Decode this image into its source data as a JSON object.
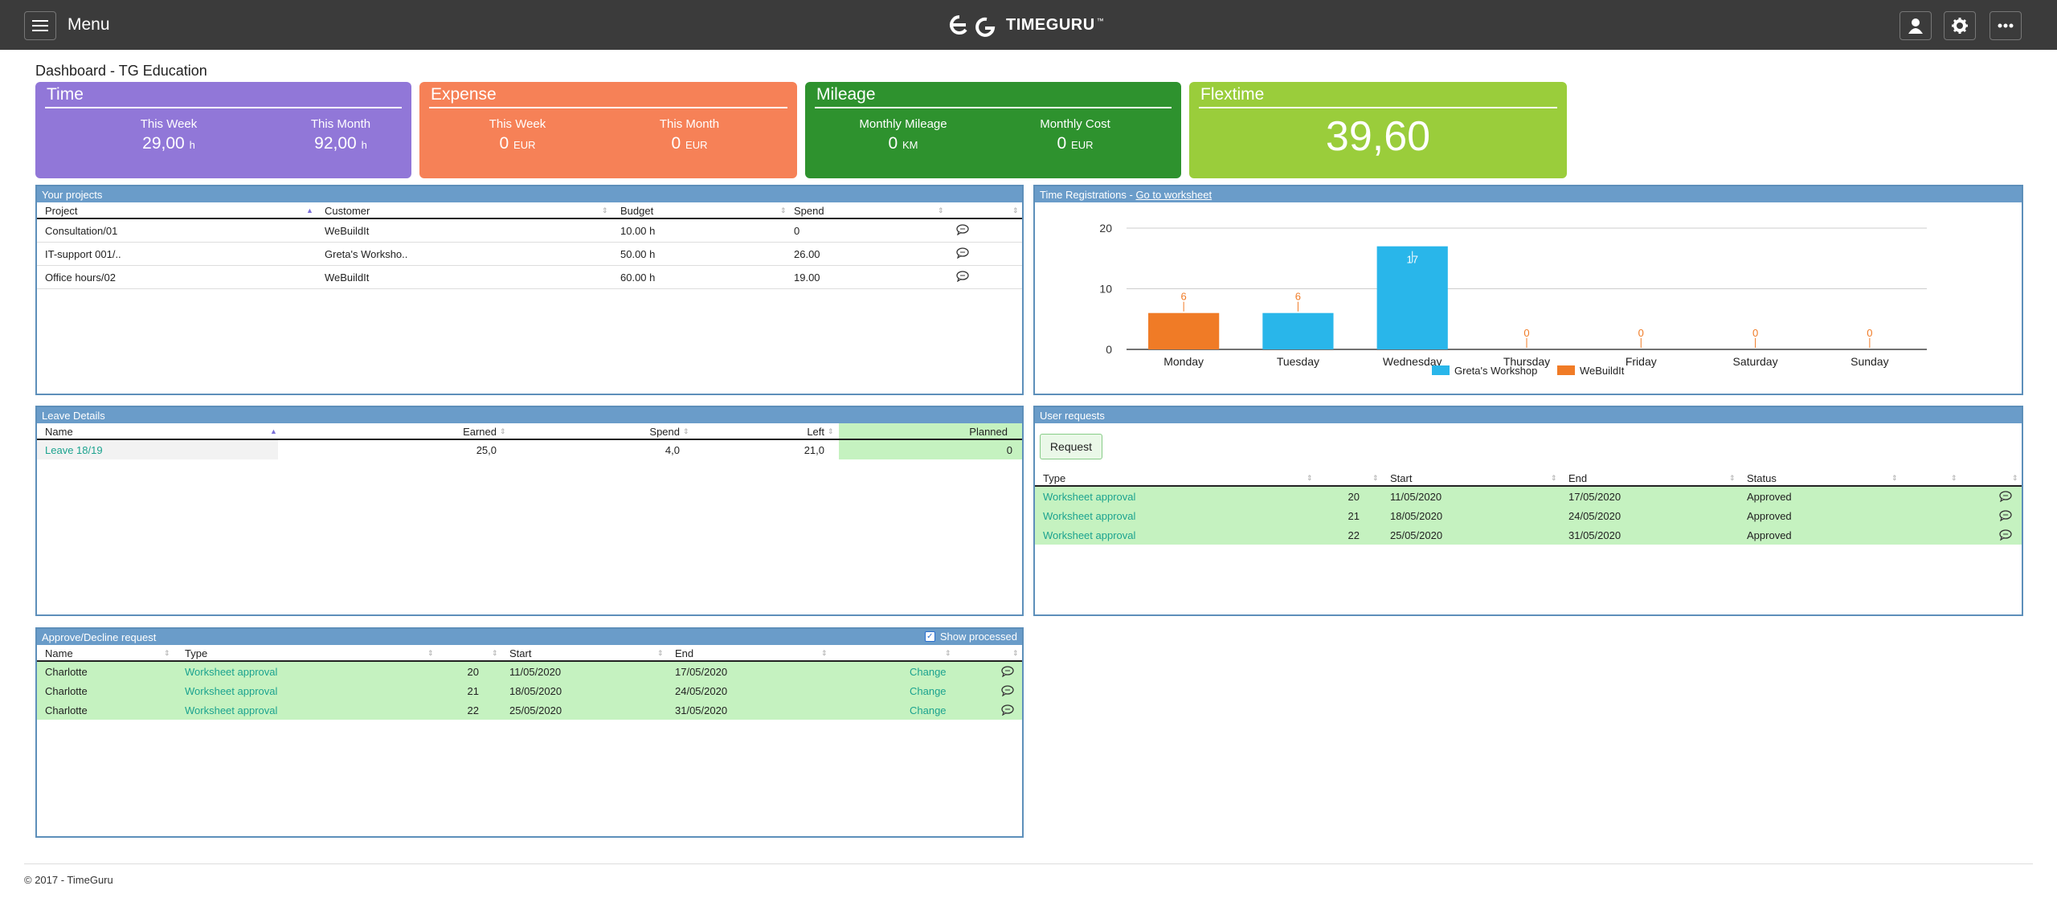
{
  "header": {
    "menu_label": "Menu",
    "logo_text": "TIMEGURU",
    "logo_tm": "™"
  },
  "page_title": "Dashboard - TG Education",
  "cards": {
    "time": {
      "title": "Time",
      "week_label": "This Week",
      "week_value": "29,00",
      "week_unit": "h",
      "month_label": "This Month",
      "month_value": "92,00",
      "month_unit": "h"
    },
    "expense": {
      "title": "Expense",
      "week_label": "This Week",
      "week_value": "0",
      "week_unit": "EUR",
      "month_label": "This Month",
      "month_value": "0",
      "month_unit": "EUR"
    },
    "mileage": {
      "title": "Mileage",
      "a_label": "Monthly Mileage",
      "a_value": "0",
      "a_unit": "KM",
      "b_label": "Monthly Cost",
      "b_value": "0",
      "b_unit": "EUR"
    },
    "flextime": {
      "title": "Flextime",
      "value": "39,60"
    }
  },
  "projects": {
    "title": "Your projects",
    "columns": [
      "Project",
      "Customer",
      "Budget",
      "Spend"
    ],
    "rows": [
      {
        "project": "Consultation/01",
        "customer": "WeBuildIt",
        "budget": "10.00 h",
        "spend": "0"
      },
      {
        "project": "IT-support 001/..",
        "customer": "Greta's Worksho..",
        "budget": "50.00 h",
        "spend": "26.00"
      },
      {
        "project": "Office hours/02",
        "customer": "WeBuildIt",
        "budget": "60.00 h",
        "spend": "19.00"
      }
    ]
  },
  "time_reg": {
    "title": "Time Registrations - ",
    "link": "Go to worksheet"
  },
  "chart_data": {
    "type": "bar",
    "categories": [
      "Monday",
      "Tuesday",
      "Wednesday",
      "Thursday",
      "Friday",
      "Saturday",
      "Sunday"
    ],
    "series": [
      {
        "name": "Greta's Workshop",
        "color": "#29b6ea",
        "values": [
          0,
          6,
          17,
          0,
          0,
          0,
          0
        ]
      },
      {
        "name": "WeBuildIt",
        "color": "#f07b26",
        "values": [
          6,
          0,
          0,
          0,
          0,
          0,
          0
        ]
      }
    ],
    "data_labels": [
      "6",
      "6",
      "17",
      "0",
      "0",
      "0",
      "0"
    ],
    "ylim": [
      0,
      20
    ],
    "yticks": [
      0,
      10,
      20
    ],
    "grid": true,
    "legend_position": "bottom"
  },
  "leave": {
    "title": "Leave Details",
    "columns": [
      "Name",
      "Earned",
      "Spend",
      "Left",
      "Planned"
    ],
    "rows": [
      {
        "name": "Leave 18/19",
        "earned": "25,0",
        "spend": "4,0",
        "left": "21,0",
        "planned": "0"
      }
    ]
  },
  "user_requests": {
    "title": "User requests",
    "request_button": "Request",
    "columns": [
      "Type",
      "Start",
      "End",
      "Status"
    ],
    "rows": [
      {
        "type": "Worksheet approval",
        "week": "20",
        "start": "11/05/2020",
        "end": "17/05/2020",
        "status": "Approved"
      },
      {
        "type": "Worksheet approval",
        "week": "21",
        "start": "18/05/2020",
        "end": "24/05/2020",
        "status": "Approved"
      },
      {
        "type": "Worksheet approval",
        "week": "22",
        "start": "25/05/2020",
        "end": "31/05/2020",
        "status": "Approved"
      }
    ]
  },
  "approve": {
    "title": "Approve/Decline request",
    "show_processed": "Show processed",
    "columns": [
      "Name",
      "Type",
      "Start",
      "End"
    ],
    "rows": [
      {
        "name": "Charlotte",
        "type": "Worksheet approval",
        "week": "20",
        "start": "11/05/2020",
        "end": "17/05/2020",
        "action": "Change"
      },
      {
        "name": "Charlotte",
        "type": "Worksheet approval",
        "week": "21",
        "start": "18/05/2020",
        "end": "24/05/2020",
        "action": "Change"
      },
      {
        "name": "Charlotte",
        "type": "Worksheet approval",
        "week": "22",
        "start": "25/05/2020",
        "end": "31/05/2020",
        "action": "Change"
      }
    ]
  },
  "footer": "© 2017 - TimeGuru"
}
